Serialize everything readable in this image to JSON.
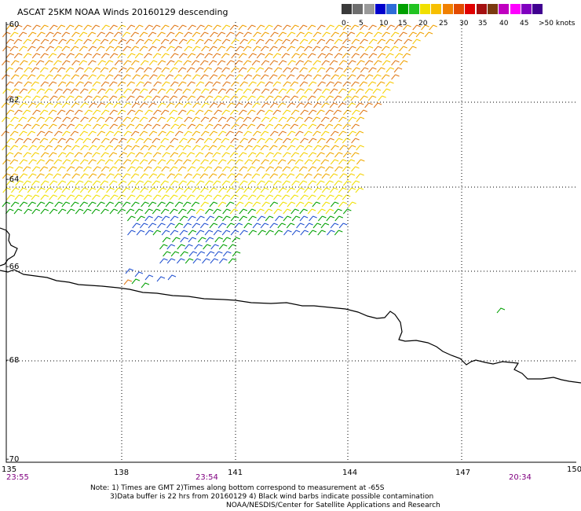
{
  "title": "ASCAT 25KM NOAA Winds 20160129 descending",
  "legend": {
    "colors": [
      "#3a3a3a",
      "#6e6e6e",
      "#9a9a9a",
      "#0000cc",
      "#2e6cd8",
      "#00a000",
      "#22c422",
      "#f0e000",
      "#f7bf00",
      "#f08000",
      "#e24a00",
      "#e00000",
      "#a51010",
      "#7a3a10",
      "#c000c0",
      "#ff00ff",
      "#8000c0",
      "#400090"
    ],
    "labels": [
      "0",
      "5",
      "10",
      "15",
      "20",
      "25",
      "30",
      "35",
      "40",
      "45",
      ">50 knots"
    ]
  },
  "lat_labels": [
    "-60",
    "-62",
    "-64",
    "-66",
    "-68",
    "-70"
  ],
  "lon_labels": [
    "135",
    "138",
    "141",
    "144",
    "147",
    "150"
  ],
  "time_labels": [
    "23:55",
    "23:54",
    "20:34"
  ],
  "notes": {
    "line1": "Note: 1) Times are GMT 2)Times along bottom correspond to measurement at -65S",
    "line2": "3)Data buffer is 22 hrs from 20160129 4) Black wind barbs indicate possible contamination",
    "line3": "NOAA/NESDIS/Center for Satellite Applications and Research"
  }
}
